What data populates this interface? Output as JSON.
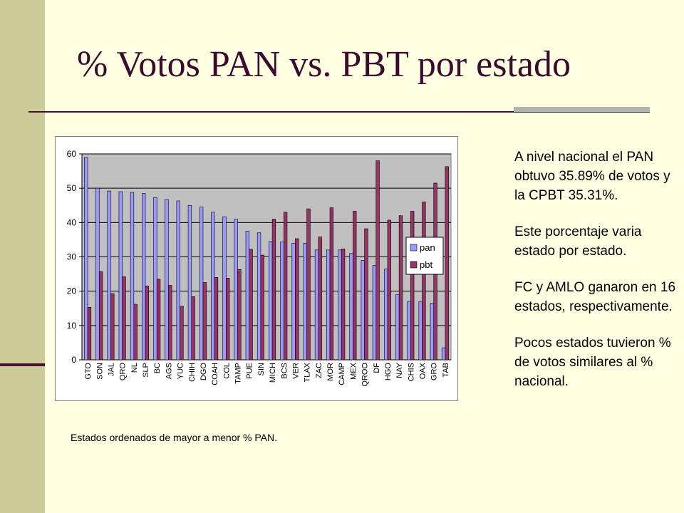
{
  "slide": {
    "title": "% Votos PAN vs. PBT por estado",
    "caption": "Estados ordenados de mayor a menor % PAN.",
    "notes": [
      "A nivel nacional el PAN obtuvo 35.89% de votos y la CPBT 35.31%.",
      "Este porcentaje varia estado por estado.",
      "FC y AMLO ganaron en 16 estados, respectivamente.",
      "Pocos estados tuvieron % de votos similares al % nacional."
    ]
  },
  "colors": {
    "background": "#FFFFE1",
    "sidebar": "#CCCC99",
    "accent": "#4B1033",
    "plot_area": "#C0C0C0",
    "pan": "#9999FF",
    "pbt": "#993366"
  },
  "chart_data": {
    "type": "bar",
    "title": "",
    "xlabel": "",
    "ylabel": "",
    "ylim": [
      0,
      60
    ],
    "yticks": [
      0,
      10,
      20,
      30,
      40,
      50,
      60
    ],
    "grid": true,
    "legend": "right",
    "categories": [
      "GTO",
      "SON",
      "JAL",
      "QRO",
      "NL",
      "SLP",
      "BC",
      "AGS",
      "YUC",
      "CHIH",
      "DGO",
      "COAH",
      "COL",
      "TAMP",
      "PUE",
      "SIN",
      "MICH",
      "BCS",
      "VER",
      "TLAX",
      "ZAC",
      "MOR",
      "CAMP",
      "MEX",
      "QROO",
      "DF",
      "HGO",
      "NAY",
      "CHIS",
      "OAX",
      "GRO",
      "TAB"
    ],
    "series": [
      {
        "name": "pan",
        "values": [
          59,
          50,
          49.2,
          49,
          48.8,
          48.5,
          47.3,
          46.7,
          46.3,
          45,
          44.5,
          43,
          41.7,
          41,
          37.5,
          37,
          34.5,
          34.3,
          34,
          34,
          32,
          32,
          32,
          31,
          29,
          27.5,
          26.5,
          19,
          17,
          17,
          16.5,
          3.5
        ]
      },
      {
        "name": "pbt",
        "values": [
          15.3,
          25.7,
          19.3,
          24.2,
          16.2,
          21.5,
          23.5,
          21.7,
          15.6,
          18.4,
          22.5,
          24,
          23.8,
          26.3,
          32.2,
          30.5,
          41,
          43,
          35.3,
          44,
          35.8,
          44.3,
          32.3,
          43.3,
          38.2,
          58,
          40.7,
          42,
          43.3,
          46,
          51.5,
          56.3
        ]
      }
    ]
  }
}
